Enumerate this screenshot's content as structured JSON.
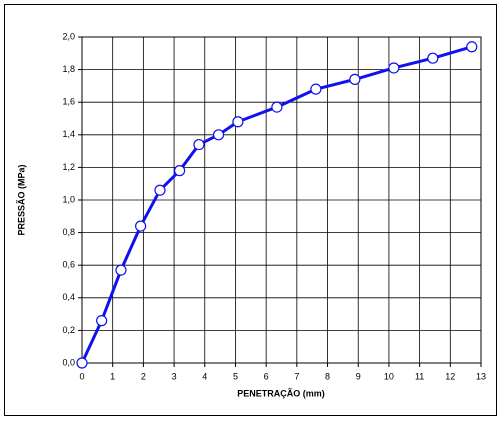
{
  "chart_data": {
    "type": "line",
    "x_label": "PENETRAÇÃO (mm)",
    "y_label": "PRESSÃO (MPa)",
    "x": [
      0,
      0.64,
      1.27,
      1.91,
      2.54,
      3.18,
      3.81,
      4.45,
      5.08,
      6.35,
      7.62,
      8.89,
      10.16,
      11.43,
      12.7
    ],
    "series": [
      {
        "color": "#1010f0",
        "values": [
          0,
          0.26,
          0.57,
          0.84,
          1.06,
          1.18,
          1.34,
          1.4,
          1.48,
          1.57,
          1.68,
          1.74,
          1.81,
          1.87,
          1.94
        ]
      }
    ],
    "xlim": [
      0,
      13
    ],
    "xticks": [
      0,
      1,
      2,
      3,
      4,
      5,
      6,
      7,
      8,
      9,
      10,
      11,
      12,
      13
    ],
    "ylim": [
      0,
      2.0
    ],
    "yticks": [
      {
        "value": 0,
        "label": "0,0"
      },
      {
        "value": 0.2,
        "label": "0,2"
      },
      {
        "value": 0.4,
        "label": "0,4"
      },
      {
        "value": 0.6,
        "label": "0,6"
      },
      {
        "value": 0.8,
        "label": "0,8"
      },
      {
        "value": 1.0,
        "label": "1,0"
      },
      {
        "value": 1.2,
        "label": "1,2"
      },
      {
        "value": 1.4,
        "label": "1,4"
      },
      {
        "value": 1.6,
        "label": "1,6"
      },
      {
        "value": 1.8,
        "label": "1,8"
      },
      {
        "value": 2.0,
        "label": "2,0"
      }
    ],
    "grid": true
  }
}
